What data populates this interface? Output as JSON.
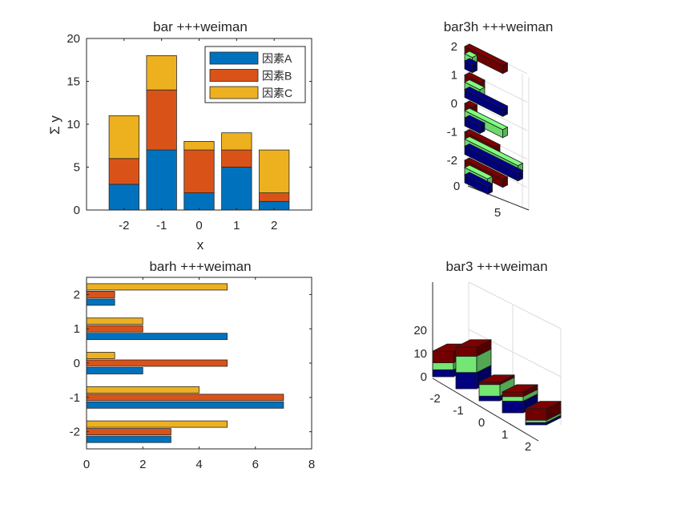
{
  "colors": {
    "A": "#0072BD",
    "B": "#D95319",
    "C": "#EDB120",
    "jet_low": "#00008F",
    "jet_mid": "#80FF80",
    "jet_high": "#800000"
  },
  "chart_data": [
    {
      "id": "bar",
      "type": "bar",
      "stacked": true,
      "title": "bar +++weiman",
      "xlabel": "x",
      "ylabel": "Σ y",
      "categories": [
        "-2",
        "-1",
        "0",
        "1",
        "2"
      ],
      "series": [
        {
          "name": "因素A",
          "values": [
            3,
            7,
            2,
            5,
            1
          ]
        },
        {
          "name": "因素B",
          "values": [
            3,
            7,
            5,
            2,
            1
          ]
        },
        {
          "name": "因素C",
          "values": [
            5,
            4,
            1,
            2,
            5
          ]
        }
      ],
      "xlim": [
        -3,
        3
      ],
      "ylim": [
        0,
        20
      ],
      "yticks": [
        "0",
        "5",
        "10",
        "15",
        "20"
      ],
      "legend": "top-right"
    },
    {
      "id": "bar3h",
      "type": "bar",
      "orientation": "3d-horizontal",
      "title": "bar3h +++weiman",
      "categories": [
        "-2",
        "-1",
        "0",
        "1",
        "2"
      ],
      "series": [
        {
          "values": [
            3,
            7,
            2,
            5,
            1
          ]
        },
        {
          "values": [
            3,
            7,
            5,
            2,
            1
          ]
        },
        {
          "values": [
            5,
            4,
            1,
            2,
            5
          ]
        }
      ],
      "yticks": [
        "2",
        "1",
        "0",
        "-1",
        "-2"
      ],
      "xticks": [
        "0",
        "5"
      ]
    },
    {
      "id": "barh",
      "type": "bar",
      "orientation": "horizontal",
      "title": "barh +++weiman",
      "categories": [
        "-2",
        "-1",
        "0",
        "1",
        "2"
      ],
      "series": [
        {
          "values": [
            3,
            7,
            2,
            5,
            1
          ]
        },
        {
          "values": [
            3,
            7,
            5,
            2,
            1
          ]
        },
        {
          "values": [
            5,
            4,
            1,
            2,
            5
          ]
        }
      ],
      "xlim": [
        0,
        8
      ],
      "xticks": [
        "0",
        "2",
        "4",
        "6",
        "8"
      ],
      "yticks": [
        "-2",
        "-1",
        "0",
        "1",
        "2"
      ]
    },
    {
      "id": "bar3",
      "type": "bar",
      "orientation": "3d-stacked",
      "title": "bar3 +++weiman",
      "categories": [
        "-2",
        "-1",
        "0",
        "1",
        "2"
      ],
      "series": [
        {
          "values": [
            3,
            7,
            2,
            5,
            1
          ]
        },
        {
          "values": [
            3,
            7,
            5,
            2,
            1
          ]
        },
        {
          "values": [
            5,
            4,
            1,
            2,
            5
          ]
        }
      ],
      "zlim": [
        0,
        20
      ],
      "zticks": [
        "0",
        "10",
        "20"
      ],
      "xticks": [
        "-2",
        "-1",
        "0",
        "1",
        "2"
      ]
    }
  ]
}
